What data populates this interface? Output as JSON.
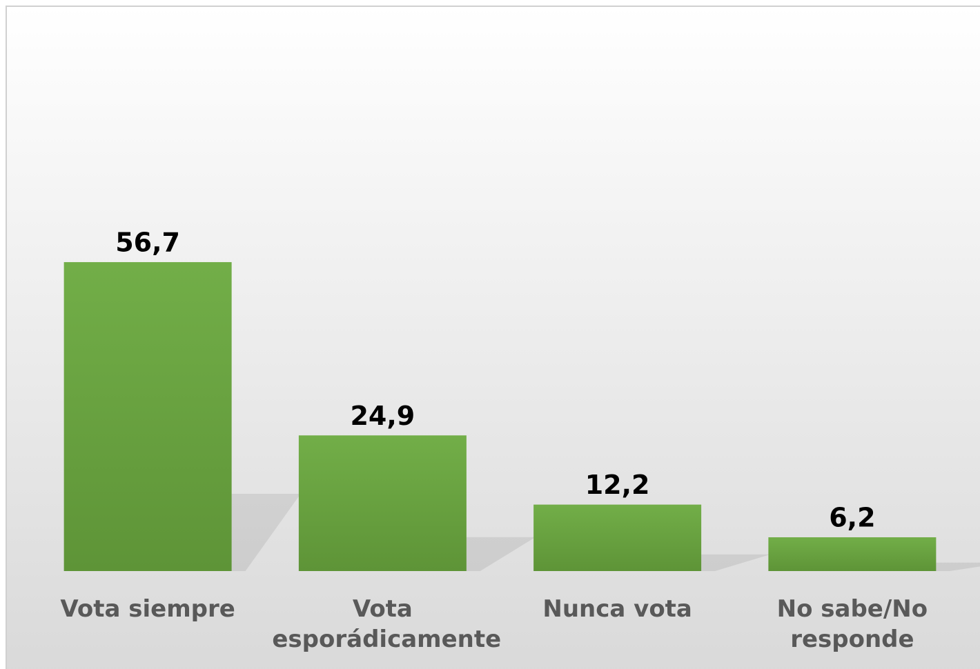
{
  "chart_data": {
    "type": "bar",
    "categories": [
      "Vota siempre",
      "Vota esporádicamente",
      "Nunca vota",
      "No sabe/No responde"
    ],
    "values": [
      56.7,
      24.9,
      12.2,
      6.2
    ],
    "value_labels": [
      "56,7",
      "24,9",
      "12,2",
      "6,2"
    ],
    "color": "#70ad47",
    "ylim": [
      0,
      100
    ]
  }
}
